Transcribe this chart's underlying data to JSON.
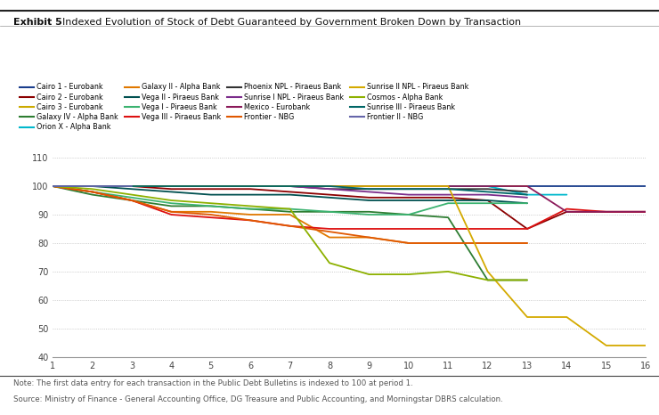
{
  "title_bold": "Exhibit 5",
  "title_normal": "Indexed Evolution of Stock of Debt Guaranteed by Government Broken Down by Transaction",
  "note": "Note: The first data entry for each transaction in the Public Debt Bulletins is indexed to 100 at period 1.",
  "source": "Source: Ministry of Finance - General Accounting Office, DG Treasure and Public Accounting, and Morningstar DBRS calculation.",
  "xlim": [
    1,
    16
  ],
  "ylim": [
    40,
    110
  ],
  "yticks": [
    40,
    50,
    60,
    70,
    80,
    90,
    100,
    110
  ],
  "xticks": [
    1,
    2,
    3,
    4,
    5,
    6,
    7,
    8,
    9,
    10,
    11,
    12,
    13,
    14,
    15,
    16
  ],
  "series": [
    {
      "label": "Cairo 1 - Eurobank",
      "color": "#1a3e8c",
      "linewidth": 1.8,
      "x": [
        1,
        2,
        3,
        4,
        5,
        6,
        7,
        8,
        9,
        10,
        11,
        12,
        13,
        14,
        15,
        16
      ],
      "y": [
        100,
        100,
        100,
        100,
        100,
        100,
        100,
        100,
        100,
        100,
        100,
        100,
        100,
        100,
        100,
        100
      ]
    },
    {
      "label": "Cairo 2 - Eurobank",
      "color": "#8b0000",
      "linewidth": 1.8,
      "x": [
        1,
        2,
        3,
        4,
        5,
        6,
        7,
        8,
        9,
        10,
        11,
        12,
        13,
        14,
        15,
        16
      ],
      "y": [
        100,
        100,
        100,
        99,
        99,
        99,
        98,
        97,
        96,
        96,
        96,
        95,
        85,
        91,
        91,
        91
      ]
    },
    {
      "label": "Cairo 3 - Eurobank",
      "color": "#ccaa00",
      "linewidth": 1.8,
      "x": [
        1,
        2,
        3,
        4,
        5,
        6,
        7,
        8,
        9,
        10,
        11,
        12,
        13
      ],
      "y": [
        100,
        100,
        100,
        100,
        100,
        100,
        100,
        100,
        100,
        100,
        100,
        100,
        100
      ]
    },
    {
      "label": "Galaxy IV - Alpha Bank",
      "color": "#2e7d32",
      "linewidth": 1.8,
      "x": [
        1,
        2,
        3,
        4,
        5,
        6,
        7,
        8,
        9,
        10,
        11,
        12,
        13
      ],
      "y": [
        100,
        97,
        95,
        93,
        93,
        92,
        91,
        91,
        91,
        90,
        89,
        67,
        67
      ]
    },
    {
      "label": "Orion X - Alpha Bank",
      "color": "#00b8cc",
      "linewidth": 1.8,
      "x": [
        1,
        2,
        3,
        4,
        5,
        6,
        7,
        8,
        9,
        10,
        11,
        12,
        13,
        14
      ],
      "y": [
        100,
        100,
        100,
        100,
        100,
        100,
        100,
        100,
        100,
        100,
        100,
        100,
        97,
        97
      ]
    },
    {
      "label": "Galaxy II - Alpha Bank",
      "color": "#e07800",
      "linewidth": 1.8,
      "x": [
        1,
        2,
        3,
        4,
        5,
        6,
        7,
        8,
        9,
        10,
        11,
        12,
        13
      ],
      "y": [
        100,
        98,
        95,
        91,
        91,
        90,
        90,
        82,
        82,
        80,
        80,
        80,
        80
      ]
    },
    {
      "label": "Vega II - Piraeus Bank",
      "color": "#005050",
      "linewidth": 1.8,
      "x": [
        1,
        2,
        3,
        4,
        5,
        6,
        7,
        8,
        9,
        10,
        11,
        12,
        13
      ],
      "y": [
        100,
        100,
        99,
        98,
        97,
        97,
        97,
        96,
        95,
        95,
        95,
        95,
        94
      ]
    },
    {
      "label": "Vega I - Piraeus Bank",
      "color": "#3cb371",
      "linewidth": 1.8,
      "x": [
        1,
        2,
        3,
        4,
        5,
        6,
        7,
        8,
        9,
        10,
        11,
        12,
        13
      ],
      "y": [
        100,
        98,
        96,
        94,
        93,
        92,
        92,
        91,
        90,
        90,
        94,
        94,
        94
      ]
    },
    {
      "label": "Vega III - Piraeus Bank",
      "color": "#dd1111",
      "linewidth": 1.8,
      "x": [
        1,
        2,
        3,
        4,
        5,
        6,
        7,
        8,
        9,
        10,
        11,
        12,
        13,
        14,
        15,
        16
      ],
      "y": [
        100,
        98,
        95,
        90,
        89,
        88,
        86,
        85,
        85,
        85,
        85,
        85,
        85,
        92,
        91,
        91
      ]
    },
    {
      "label": "Phoenix NPL - Piraeus Bank",
      "color": "#333333",
      "linewidth": 1.8,
      "x": [
        1,
        2,
        3,
        4,
        5,
        6,
        7,
        8,
        9,
        10,
        11,
        12,
        13
      ],
      "y": [
        100,
        100,
        100,
        100,
        100,
        100,
        100,
        99,
        99,
        99,
        99,
        99,
        98
      ]
    },
    {
      "label": "Sunrise I NPL - Piraeus Bank",
      "color": "#7b2d8b",
      "linewidth": 1.8,
      "x": [
        1,
        2,
        3,
        4,
        5,
        6,
        7,
        8,
        9,
        10,
        11,
        12,
        13
      ],
      "y": [
        100,
        100,
        100,
        100,
        100,
        100,
        100,
        99,
        98,
        97,
        97,
        97,
        96
      ]
    },
    {
      "label": "Mexico - Eurobank",
      "color": "#8b1a5a",
      "linewidth": 1.8,
      "x": [
        1,
        2,
        3,
        4,
        5,
        6,
        7,
        8,
        9,
        10,
        11,
        12,
        13,
        14,
        15,
        16
      ],
      "y": [
        100,
        100,
        100,
        100,
        100,
        100,
        100,
        100,
        100,
        100,
        100,
        100,
        100,
        91,
        91,
        91
      ]
    },
    {
      "label": "Frontier - NBG",
      "color": "#e05800",
      "linewidth": 1.8,
      "x": [
        1,
        2,
        3,
        4,
        5,
        6,
        7,
        8,
        9,
        10,
        11,
        12,
        13
      ],
      "y": [
        100,
        98,
        95,
        91,
        90,
        88,
        86,
        84,
        82,
        80,
        80,
        80,
        80
      ]
    },
    {
      "label": "Sunrise II NPL - Piraeus Bank",
      "color": "#d4aa00",
      "linewidth": 1.8,
      "x": [
        1,
        2,
        3,
        4,
        5,
        6,
        7,
        8,
        9,
        10,
        11,
        12,
        13,
        14,
        15,
        16
      ],
      "y": [
        100,
        100,
        100,
        100,
        100,
        100,
        100,
        100,
        100,
        100,
        100,
        70,
        54,
        54,
        44,
        44
      ]
    },
    {
      "label": "Cosmos - Alpha Bank",
      "color": "#8db000",
      "linewidth": 1.8,
      "x": [
        1,
        2,
        3,
        4,
        5,
        6,
        7,
        8,
        9,
        10,
        11,
        12,
        13
      ],
      "y": [
        100,
        99,
        97,
        95,
        94,
        93,
        92,
        73,
        69,
        69,
        70,
        67,
        67
      ]
    },
    {
      "label": "Sunrise III - Piraeus Bank",
      "color": "#006666",
      "linewidth": 1.8,
      "x": [
        1,
        2,
        3,
        4,
        5,
        6,
        7,
        8,
        9,
        10,
        11,
        12,
        13
      ],
      "y": [
        100,
        100,
        100,
        100,
        100,
        100,
        100,
        100,
        99,
        99,
        99,
        98,
        97
      ]
    },
    {
      "label": "Frontier II - NBG",
      "color": "#6666aa",
      "linewidth": 1.8,
      "x": [
        1,
        2,
        3
      ],
      "y": [
        100,
        100,
        100
      ]
    }
  ],
  "legend_order": [
    "Cairo 1 - Eurobank",
    "Cairo 2 - Eurobank",
    "Cairo 3 - Eurobank",
    "Galaxy IV - Alpha Bank",
    "Orion X - Alpha Bank",
    "Galaxy II - Alpha Bank",
    "Vega II - Piraeus Bank",
    "Vega I - Piraeus Bank",
    "Vega III - Piraeus Bank",
    "Phoenix NPL - Piraeus Bank",
    "Sunrise I NPL - Piraeus Bank",
    "Mexico - Eurobank",
    "Frontier - NBG",
    "Sunrise II NPL - Piraeus Bank",
    "Cosmos - Alpha Bank",
    "Sunrise III - Piraeus Bank",
    "Frontier II - NBG"
  ]
}
